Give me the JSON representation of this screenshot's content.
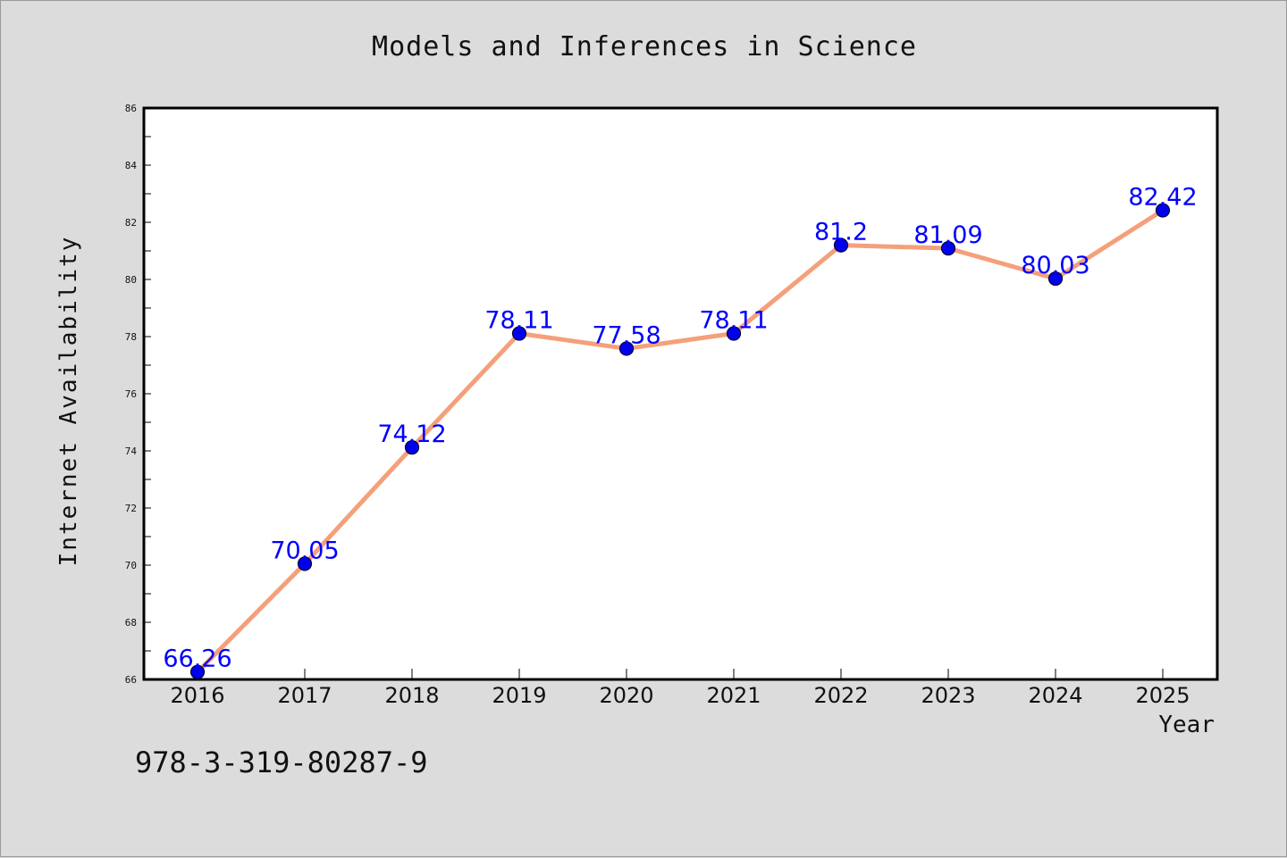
{
  "chart_data": {
    "type": "line",
    "title": "Models and Inferences in Science",
    "xlabel": "Year",
    "ylabel": "Internet Availability",
    "categories": [
      "2016",
      "2017",
      "2018",
      "2019",
      "2020",
      "2021",
      "2022",
      "2023",
      "2024",
      "2025"
    ],
    "series": [
      {
        "values": [
          66.26,
          70.05,
          74.12,
          78.11,
          77.58,
          78.11,
          81.2,
          81.09,
          80.03,
          82.42
        ],
        "data_labels": [
          "66.26",
          "70.05",
          "74.12",
          "78.11",
          "77.58",
          "78.11",
          "81.2",
          "81.09",
          "80.03",
          "82.42"
        ],
        "line_color": "#f4a07a",
        "marker_color": "#0000ee"
      }
    ],
    "ylim": [
      66,
      86
    ],
    "yticks": [
      "66",
      "68",
      "70",
      "72",
      "74",
      "76",
      "78",
      "80",
      "82",
      "84",
      "86"
    ],
    "grid": false,
    "legend": false,
    "label_color": "#0000ff"
  },
  "footer": {
    "id_text": "978-3-319-80287-9"
  }
}
